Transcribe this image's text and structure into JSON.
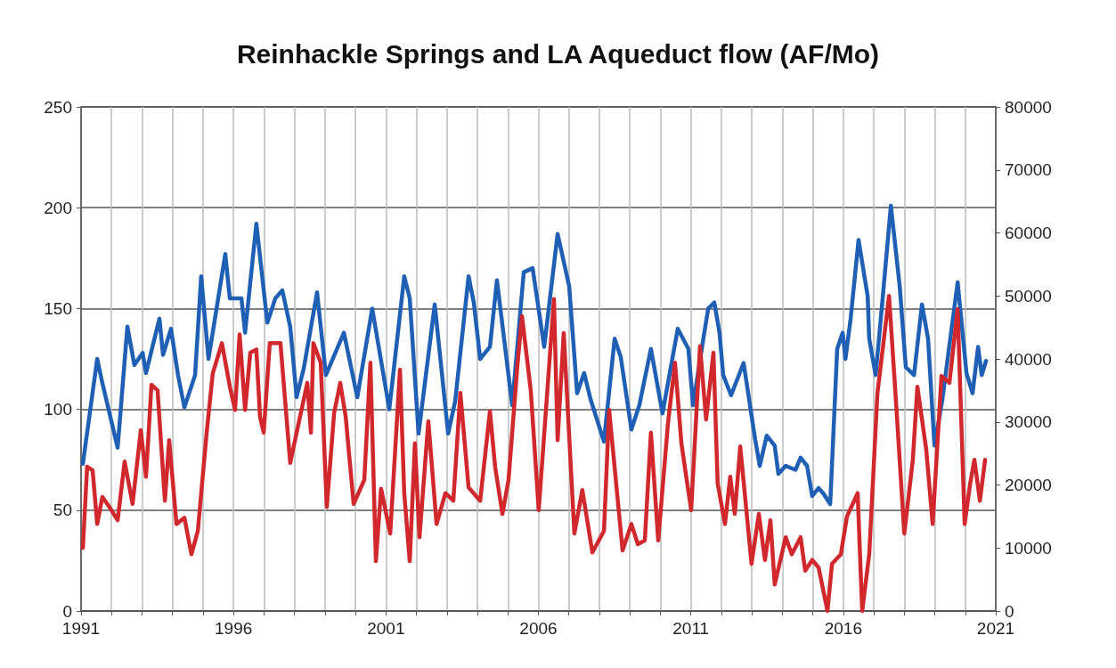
{
  "chart_data": {
    "type": "line",
    "title": "Reinhackle Springs and LA Aqueduct flow (AF/Mo)",
    "xlim": [
      1991,
      2021
    ],
    "xticks": [
      1991,
      {
        "value": 1992,
        "label": null
      },
      {
        "value": 1993,
        "label": null
      },
      {
        "value": 1994,
        "label": null
      },
      {
        "value": 1995,
        "label": null
      },
      1996,
      {
        "value": 1997,
        "label": null
      },
      {
        "value": 1998,
        "label": null
      },
      {
        "value": 1999,
        "label": null
      },
      {
        "value": 2000,
        "label": null
      },
      2001,
      {
        "value": 2002,
        "label": null
      },
      {
        "value": 2003,
        "label": null
      },
      {
        "value": 2004,
        "label": null
      },
      {
        "value": 2005,
        "label": null
      },
      2006,
      {
        "value": 2007,
        "label": null
      },
      {
        "value": 2008,
        "label": null
      },
      {
        "value": 2009,
        "label": null
      },
      {
        "value": 2010,
        "label": null
      },
      2011,
      {
        "value": 2012,
        "label": null
      },
      {
        "value": 2013,
        "label": null
      },
      {
        "value": 2014,
        "label": null
      },
      {
        "value": 2015,
        "label": null
      },
      2016,
      {
        "value": 2017,
        "label": null
      },
      {
        "value": 2018,
        "label": null
      },
      {
        "value": 2019,
        "label": null
      },
      {
        "value": 2020,
        "label": null
      },
      2021
    ],
    "ylim": [
      0,
      250
    ],
    "yticks": [
      0,
      50,
      100,
      150,
      200,
      250
    ],
    "y2lim": [
      0,
      80000
    ],
    "y2ticks": [
      0,
      10000,
      20000,
      30000,
      40000,
      50000,
      60000,
      70000,
      80000
    ],
    "grid": true,
    "marker": "none",
    "line_style": "solid",
    "series": [
      {
        "color": "#1f5fb4",
        "x": [
          1991.06,
          1991.53,
          1991.7,
          1992.2,
          1992.52,
          1992.75,
          1993.02,
          1993.13,
          1993.57,
          1993.69,
          1993.95,
          1994.18,
          1994.39,
          1994.74,
          1994.94,
          1995.18,
          1995.73,
          1995.88,
          1996.26,
          1996.38,
          1996.75,
          1997.11,
          1997.37,
          1997.6,
          1997.86,
          1998.07,
          1998.3,
          1998.74,
          1999.03,
          1999.62,
          2000.06,
          2000.55,
          2001.11,
          2001.6,
          2001.78,
          2002.07,
          2002.6,
          2003.04,
          2003.27,
          2003.71,
          2003.88,
          2004.09,
          2004.41,
          2004.64,
          2005.14,
          2005.52,
          2005.81,
          2006.19,
          2006.63,
          2007.01,
          2007.27,
          2007.5,
          2007.71,
          2008.15,
          2008.5,
          2008.7,
          2009.05,
          2009.31,
          2009.69,
          2010.07,
          2010.57,
          2010.92,
          2011.07,
          2011.44,
          2011.57,
          2011.77,
          2011.94,
          2012.06,
          2012.32,
          2012.73,
          2012.94,
          2013.11,
          2013.26,
          2013.49,
          2013.75,
          2013.87,
          2014.11,
          2014.43,
          2014.6,
          2014.81,
          2014.98,
          2015.19,
          2015.36,
          2015.57,
          2015.8,
          2015.98,
          2016.07,
          2016.24,
          2016.5,
          2016.8,
          2016.85,
          2017.06,
          2017.29,
          2017.56,
          2017.85,
          2018.05,
          2018.32,
          2018.58,
          2018.78,
          2018.99,
          2019.25,
          2019.75,
          2020.04,
          2020.24,
          2020.42,
          2020.54,
          2020.68
        ],
        "values": [
          73,
          125,
          113,
          81,
          141,
          122,
          128,
          118,
          145,
          127,
          140,
          117,
          101,
          117,
          166,
          125,
          177,
          155,
          155,
          138,
          192,
          143,
          155,
          159,
          141,
          106,
          120,
          158,
          117,
          138,
          106,
          150,
          100,
          166,
          155,
          88,
          152,
          88,
          104,
          166,
          153,
          125,
          131,
          164,
          102,
          168,
          170,
          131,
          187,
          161,
          108,
          118,
          105,
          84,
          135,
          126,
          90,
          102,
          130,
          98,
          140,
          130,
          102,
          138,
          150,
          153,
          138,
          117,
          107,
          123,
          102,
          85,
          72,
          87,
          82,
          68,
          72,
          70,
          76,
          72,
          57,
          61,
          58,
          53,
          130,
          138,
          125,
          145,
          184,
          156,
          135,
          117,
          155,
          201,
          161,
          121,
          117,
          152,
          135,
          82,
          105,
          163,
          118,
          108,
          131,
          117,
          124
        ]
      },
      {
        "color": "#d0282c",
        "axis": "y2",
        "x": [
          1991.06,
          1991.2,
          1991.38,
          1991.53,
          1991.7,
          1991.93,
          1992.2,
          1992.43,
          1992.69,
          1992.96,
          1993.13,
          1993.31,
          1993.51,
          1993.75,
          1993.89,
          1994.13,
          1994.39,
          1994.62,
          1994.83,
          1995.12,
          1995.32,
          1995.62,
          1995.88,
          1996.05,
          1996.2,
          1996.38,
          1996.55,
          1996.75,
          1996.87,
          1996.99,
          1997.19,
          1997.54,
          1997.86,
          1998.07,
          1998.42,
          1998.54,
          1998.62,
          1998.86,
          1999.06,
          1999.3,
          1999.5,
          1999.68,
          1999.94,
          2000.29,
          2000.49,
          2000.67,
          2000.84,
          2001.14,
          2001.46,
          2001.6,
          2001.78,
          2001.95,
          2002.1,
          2002.39,
          2002.66,
          2002.95,
          2003.21,
          2003.44,
          2003.71,
          2004.09,
          2004.41,
          2004.58,
          2004.82,
          2005.02,
          2005.31,
          2005.46,
          2005.75,
          2006.01,
          2006.51,
          2006.63,
          2006.83,
          2007.18,
          2007.44,
          2007.77,
          2008.15,
          2008.32,
          2008.76,
          2009.05,
          2009.26,
          2009.49,
          2009.69,
          2009.93,
          2010.25,
          2010.48,
          2010.69,
          2011.01,
          2011.3,
          2011.5,
          2011.74,
          2011.88,
          2012.12,
          2012.29,
          2012.44,
          2012.62,
          2012.99,
          2013.23,
          2013.43,
          2013.61,
          2013.75,
          2014.11,
          2014.31,
          2014.6,
          2014.75,
          2014.98,
          2015.19,
          2015.48,
          2015.63,
          2015.92,
          2016.12,
          2016.47,
          2016.62,
          2016.85,
          2017.12,
          2017.5,
          2017.73,
          2018.0,
          2018.28,
          2018.43,
          2018.72,
          2018.93,
          2019.22,
          2019.48,
          2019.75,
          2019.98,
          2020.16,
          2020.3,
          2020.48,
          2020.65
        ],
        "values": [
          10000,
          22900,
          22300,
          13800,
          18100,
          16500,
          14400,
          23700,
          17000,
          28700,
          21300,
          35900,
          35000,
          17500,
          27100,
          13800,
          14800,
          9000,
          12700,
          28300,
          37700,
          42500,
          35600,
          31900,
          43900,
          31900,
          41000,
          41500,
          30800,
          28300,
          42500,
          42500,
          23500,
          28300,
          36200,
          28300,
          42500,
          39400,
          16500,
          31400,
          36200,
          30800,
          17000,
          20800,
          39400,
          7900,
          19400,
          12300,
          38300,
          18700,
          7900,
          26600,
          11700,
          30100,
          13800,
          18700,
          17500,
          34600,
          19600,
          17500,
          31700,
          22900,
          15400,
          20800,
          38900,
          46800,
          35000,
          16000,
          49500,
          27100,
          44100,
          12300,
          19200,
          9300,
          12700,
          31900,
          9600,
          13800,
          10600,
          11200,
          28300,
          11200,
          29800,
          39400,
          26600,
          16000,
          42000,
          30400,
          41000,
          20200,
          13800,
          21300,
          15400,
          26100,
          7500,
          15400,
          8100,
          14400,
          4200,
          11700,
          9000,
          11700,
          6400,
          8100,
          6900,
          0,
          7500,
          9000,
          15000,
          18700,
          0,
          9000,
          34600,
          50000,
          33100,
          12300,
          24000,
          35600,
          25600,
          13800,
          37300,
          36200,
          47900,
          13800,
          20200,
          24000,
          17500,
          24000
        ]
      }
    ]
  }
}
